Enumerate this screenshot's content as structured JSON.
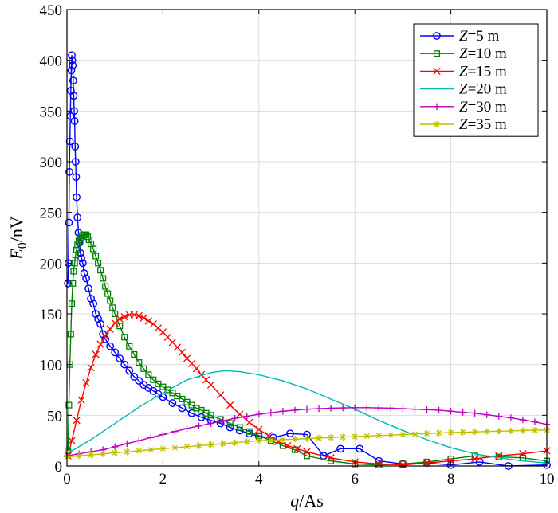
{
  "chart_data": {
    "type": "line",
    "xlabel": {
      "var": "q",
      "unit": "/As"
    },
    "ylabel": {
      "var": "E",
      "sub": "0",
      "unit": "/nV"
    },
    "xlim": [
      0,
      10
    ],
    "ylim": [
      0,
      450
    ],
    "xticks": [
      0,
      2,
      4,
      6,
      8,
      10
    ],
    "yticks": [
      0,
      50,
      100,
      150,
      200,
      250,
      300,
      350,
      400,
      450
    ],
    "grid": true,
    "legend_position": "top-right",
    "series": [
      {
        "name": "Z=5 m",
        "legend_var": "Z",
        "legend_rest": "=5 m",
        "color": "#0000ff",
        "marker": "circle",
        "x": [
          0.02,
          0.03,
          0.04,
          0.05,
          0.06,
          0.07,
          0.08,
          0.09,
          0.1,
          0.11,
          0.12,
          0.13,
          0.14,
          0.15,
          0.16,
          0.17,
          0.18,
          0.19,
          0.2,
          0.22,
          0.24,
          0.26,
          0.28,
          0.3,
          0.33,
          0.36,
          0.4,
          0.45,
          0.5,
          0.55,
          0.6,
          0.65,
          0.7,
          0.75,
          0.8,
          0.9,
          1.0,
          1.1,
          1.2,
          1.3,
          1.4,
          1.5,
          1.6,
          1.7,
          1.8,
          1.9,
          2.0,
          2.2,
          2.4,
          2.6,
          2.8,
          3.0,
          3.2,
          3.4,
          3.6,
          3.8,
          4.0,
          4.3,
          4.65,
          5.0,
          5.35,
          5.7,
          6.1,
          6.5,
          7.0,
          7.5,
          8.0,
          8.6,
          9.2,
          10.0
        ],
        "y": [
          180,
          200,
          240,
          290,
          320,
          345,
          370,
          390,
          405,
          400,
          395,
          380,
          365,
          350,
          340,
          315,
          300,
          285,
          265,
          245,
          230,
          220,
          210,
          205,
          200,
          190,
          185,
          175,
          165,
          160,
          150,
          145,
          140,
          130,
          125,
          118,
          112,
          106,
          100,
          94,
          88,
          84,
          80,
          77,
          74,
          71,
          68,
          62,
          57,
          52,
          48,
          45,
          42,
          38,
          35,
          32,
          29,
          28,
          32,
          31,
          10,
          17,
          17,
          5,
          2,
          3,
          1,
          4,
          0,
          1
        ]
      },
      {
        "name": "Z=10 m",
        "legend_var": "Z",
        "legend_rest": "=10 m",
        "color": "#008000",
        "marker": "square",
        "x": [
          0.02,
          0.04,
          0.06,
          0.08,
          0.1,
          0.12,
          0.14,
          0.16,
          0.18,
          0.2,
          0.22,
          0.25,
          0.28,
          0.31,
          0.34,
          0.37,
          0.4,
          0.43,
          0.46,
          0.5,
          0.55,
          0.6,
          0.65,
          0.7,
          0.75,
          0.8,
          0.85,
          0.9,
          0.95,
          1.0,
          1.1,
          1.2,
          1.3,
          1.4,
          1.5,
          1.6,
          1.7,
          1.8,
          1.9,
          2.0,
          2.1,
          2.2,
          2.3,
          2.4,
          2.5,
          2.6,
          2.7,
          2.8,
          2.9,
          3.0,
          3.2,
          3.4,
          3.6,
          3.8,
          4.0,
          4.25,
          4.5,
          4.75,
          5.0,
          5.5,
          6.0,
          6.5,
          7.0,
          7.5,
          8.0,
          8.5,
          9.0,
          9.5,
          10.0
        ],
        "y": [
          15,
          60,
          100,
          130,
          160,
          180,
          192,
          200,
          208,
          213,
          218,
          222,
          225,
          227,
          228,
          228,
          228,
          226,
          223,
          219,
          214,
          207,
          200,
          193,
          185,
          177,
          170,
          163,
          156,
          150,
          138,
          127,
          118,
          110,
          102,
          96,
          90,
          85,
          81,
          78,
          75,
          72,
          69,
          66,
          63,
          60,
          57,
          55,
          52,
          50,
          46,
          42,
          38,
          34,
          30,
          25,
          20,
          16,
          10,
          5,
          2,
          1,
          2,
          4,
          7,
          10,
          9,
          8,
          5
        ]
      },
      {
        "name": "Z=15 m",
        "legend_var": "Z",
        "legend_rest": "=15 m",
        "color": "#ff0000",
        "marker": "x",
        "x": [
          0.02,
          0.1,
          0.2,
          0.3,
          0.4,
          0.5,
          0.6,
          0.7,
          0.8,
          0.9,
          1.0,
          1.1,
          1.2,
          1.3,
          1.4,
          1.5,
          1.6,
          1.7,
          1.8,
          1.9,
          2.0,
          2.1,
          2.2,
          2.3,
          2.4,
          2.5,
          2.6,
          2.7,
          2.8,
          2.9,
          3.0,
          3.2,
          3.4,
          3.6,
          3.8,
          4.0,
          4.2,
          4.4,
          4.6,
          4.8,
          5.0,
          5.5,
          6.0,
          6.5,
          7.0,
          7.5,
          8.0,
          8.5,
          9.0,
          9.5,
          10.0
        ],
        "y": [
          10,
          25,
          45,
          65,
          82,
          97,
          110,
          120,
          128,
          135,
          141,
          145,
          147,
          149,
          149,
          148,
          146,
          143,
          140,
          136,
          132,
          127,
          122,
          117,
          112,
          106,
          101,
          96,
          90,
          85,
          80,
          70,
          60,
          51,
          43,
          36,
          30,
          24,
          20,
          17,
          14,
          8,
          4,
          2,
          1,
          3,
          5,
          7,
          10,
          12,
          15
        ]
      },
      {
        "name": "Z=20 m",
        "legend_var": "Z",
        "legend_rest": "=20 m",
        "color": "#00b8b8",
        "marker": "none",
        "x": [
          0.0,
          0.5,
          1.0,
          1.5,
          2.0,
          2.5,
          3.0,
          3.3,
          3.6,
          4.0,
          4.5,
          5.0,
          5.5,
          6.0,
          6.5,
          7.0,
          7.5,
          8.0,
          8.5,
          9.0,
          9.5,
          10.0
        ],
        "y": [
          12,
          26,
          42,
          58,
          72,
          85,
          92,
          94,
          93,
          90,
          84,
          76,
          66,
          56,
          45,
          35,
          26,
          18,
          12,
          8,
          5,
          3
        ]
      },
      {
        "name": "Z=30 m",
        "legend_var": "Z",
        "legend_rest": "=30 m",
        "color": "#bf00bf",
        "marker": "plus",
        "x": [
          0.0,
          0.25,
          0.5,
          0.75,
          1.0,
          1.25,
          1.5,
          1.75,
          2.0,
          2.25,
          2.5,
          2.75,
          3.0,
          3.25,
          3.5,
          3.75,
          4.0,
          4.25,
          4.5,
          4.75,
          5.0,
          5.25,
          5.5,
          5.75,
          6.0,
          6.25,
          6.5,
          6.75,
          7.0,
          7.25,
          7.5,
          7.75,
          8.0,
          8.25,
          8.5,
          8.75,
          9.0,
          9.25,
          9.5,
          9.75,
          10.0
        ],
        "y": [
          10,
          12,
          14,
          16,
          19,
          22,
          25,
          28,
          31,
          34,
          37,
          39.5,
          42,
          44.5,
          47,
          49,
          51,
          52.5,
          54,
          55,
          56,
          56.5,
          57,
          57.3,
          57.5,
          57.5,
          57.3,
          57,
          56.5,
          56,
          55.5,
          55,
          54,
          53,
          52,
          50.5,
          49,
          47.5,
          45.5,
          43.5,
          41
        ]
      },
      {
        "name": "Z=35 m",
        "legend_var": "Z",
        "legend_rest": "=35 m",
        "color": "#bfbf00",
        "marker": "star",
        "x": [
          0.0,
          0.25,
          0.5,
          0.75,
          1.0,
          1.25,
          1.5,
          1.75,
          2.0,
          2.25,
          2.5,
          2.75,
          3.0,
          3.25,
          3.5,
          3.75,
          4.0,
          4.25,
          4.5,
          4.75,
          5.0,
          5.25,
          5.5,
          5.75,
          6.0,
          6.25,
          6.5,
          6.75,
          7.0,
          7.25,
          7.5,
          7.75,
          8.0,
          8.25,
          8.5,
          8.75,
          9.0,
          9.25,
          9.5,
          9.75,
          10.0
        ],
        "y": [
          9,
          10,
          11,
          12,
          13,
          14,
          15,
          16,
          17,
          18,
          19,
          20,
          21,
          22,
          23,
          24,
          25,
          25.5,
          26,
          26.5,
          27,
          27.5,
          28,
          28.5,
          29,
          29.5,
          30,
          30.5,
          31,
          31.5,
          32,
          32.5,
          33,
          33.3,
          33.6,
          34,
          34.3,
          34.6,
          35,
          35.3,
          35.6
        ]
      }
    ]
  }
}
